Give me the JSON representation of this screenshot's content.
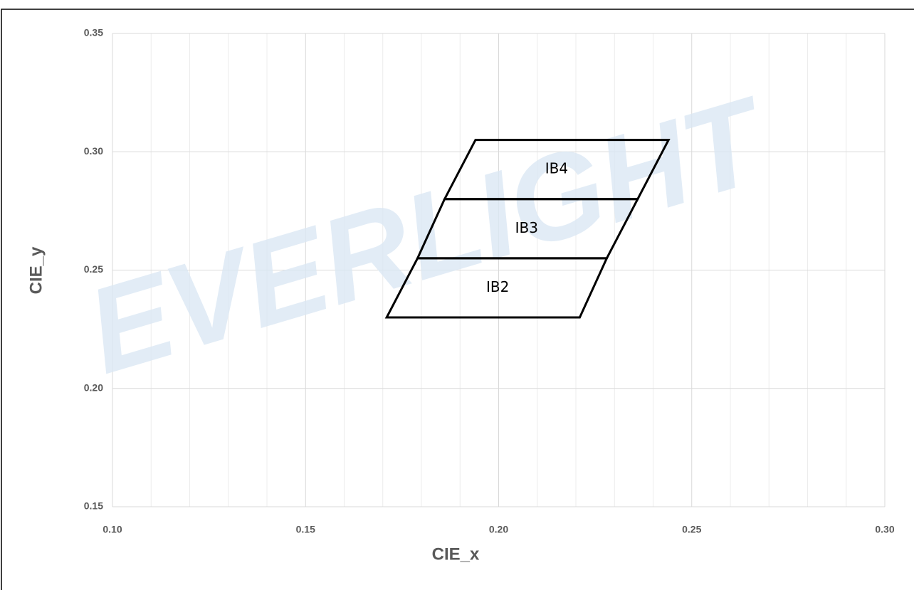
{
  "chart_data": {
    "type": "polygon",
    "watermark": "EVERLIGHT",
    "x_label": "CIE_x",
    "y_label": "CIE_y",
    "xlim": [
      0.1,
      0.3
    ],
    "ylim": [
      0.15,
      0.35
    ],
    "xticks": [
      {
        "value": 0.1,
        "label": "0.10"
      },
      {
        "value": 0.15,
        "label": "0.15"
      },
      {
        "value": 0.2,
        "label": "0.20"
      },
      {
        "value": 0.25,
        "label": "0.25"
      },
      {
        "value": 0.3,
        "label": "0.30"
      }
    ],
    "yticks": [
      {
        "value": 0.15,
        "label": "0.15"
      },
      {
        "value": 0.2,
        "label": "0.20"
      },
      {
        "value": 0.25,
        "label": "0.25"
      },
      {
        "value": 0.3,
        "label": "0.30"
      },
      {
        "value": 0.35,
        "label": "0.35"
      }
    ],
    "x_minor_grid": [
      0.11,
      0.12,
      0.13,
      0.14,
      0.16,
      0.17,
      0.18,
      0.19,
      0.21,
      0.22,
      0.23,
      0.24,
      0.26,
      0.27,
      0.28,
      0.29
    ],
    "grid": true,
    "color": "#000000",
    "series": [
      {
        "name": "IB2",
        "x": [
          0.171,
          0.221,
          0.228,
          0.179
        ],
        "y": [
          0.23,
          0.23,
          0.255,
          0.255
        ]
      },
      {
        "name": "IB3",
        "x": [
          0.179,
          0.228,
          0.236,
          0.186
        ],
        "y": [
          0.255,
          0.255,
          0.28,
          0.28
        ]
      },
      {
        "name": "IB4",
        "x": [
          0.186,
          0.236,
          0.244,
          0.194
        ],
        "y": [
          0.28,
          0.28,
          0.305,
          0.305
        ]
      }
    ]
  }
}
